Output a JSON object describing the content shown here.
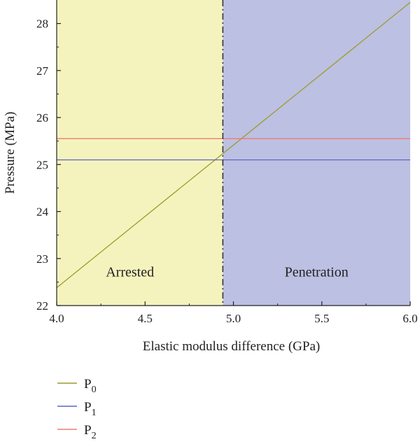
{
  "chart_data": {
    "type": "line",
    "xlabel": "Elastic modulus difference (GPa)",
    "ylabel": "Pressure (MPa)",
    "xlim": [
      4.0,
      6.0
    ],
    "ylim": [
      22,
      28.5
    ],
    "x_ticks": [
      "4.0",
      "4.5",
      "5.0",
      "5.5",
      "6.0"
    ],
    "y_ticks": [
      "22",
      "23",
      "24",
      "25",
      "26",
      "27",
      "28"
    ],
    "grid": false,
    "legend_position": "below-left",
    "threshold_x": 4.94,
    "regions": [
      {
        "label": "Arrested",
        "x_range": [
          4.0,
          4.94
        ],
        "color": "#f5f3bd"
      },
      {
        "label": "Penetration",
        "x_range": [
          4.94,
          6.0
        ],
        "color": "#bcc0e2"
      }
    ],
    "series": [
      {
        "name": "P",
        "subscript": "0",
        "color": "#9c9c2c",
        "x": [
          4.0,
          6.0
        ],
        "y": [
          22.38,
          28.45
        ]
      },
      {
        "name": "P",
        "subscript": "1",
        "color": "#5a66c9",
        "x": [
          4.0,
          6.0
        ],
        "y": [
          25.1,
          25.1
        ]
      },
      {
        "name": "P",
        "subscript": "2",
        "color": "#f07a7a",
        "x": [
          4.0,
          6.0
        ],
        "y": [
          25.55,
          25.55
        ]
      }
    ]
  }
}
